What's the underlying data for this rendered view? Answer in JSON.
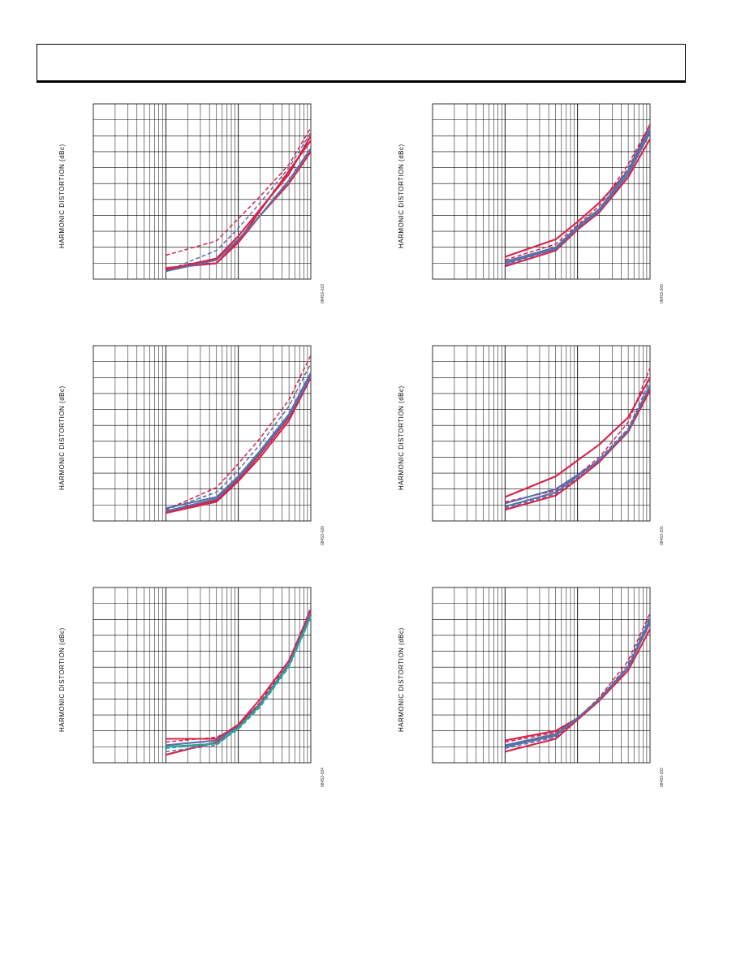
{
  "page": {
    "header_text": ""
  },
  "chart_data": [
    {
      "id": "top-left",
      "type": "line",
      "ylabel": "HARMONIC DISTORTION (dBc)",
      "figure_id": "08453-023",
      "xscale": "log",
      "xlim": [
        0.1,
        100
      ],
      "ylim": [
        -140,
        -30
      ],
      "series": [
        {
          "color": "#d6234a",
          "dashed": false,
          "x": [
            1,
            5,
            10,
            20,
            50,
            100
          ],
          "y": [
            -133,
            -130,
            -117,
            -100,
            -80,
            -60
          ]
        },
        {
          "color": "#d6234a",
          "dashed": false,
          "x": [
            1,
            5,
            10,
            20,
            50,
            100
          ],
          "y": [
            -133,
            -130,
            -116,
            -97,
            -72,
            -53
          ]
        },
        {
          "color": "#5a6fa8",
          "dashed": false,
          "x": [
            1,
            5,
            10,
            20,
            50,
            100
          ],
          "y": [
            -135,
            -128,
            -115,
            -100,
            -78,
            -58
          ]
        },
        {
          "color": "#5a6fa8",
          "dashed": true,
          "x": [
            1,
            5,
            10,
            20,
            50,
            100
          ],
          "y": [
            -135,
            -122,
            -108,
            -92,
            -70,
            -48
          ]
        },
        {
          "color": "#d6234a",
          "dashed": true,
          "x": [
            1,
            5,
            10,
            20,
            50,
            100
          ],
          "y": [
            -125,
            -116,
            -102,
            -88,
            -68,
            -45
          ]
        },
        {
          "color": "#d6234a",
          "dashed": false,
          "x": [
            1,
            5,
            10,
            20,
            50,
            100
          ],
          "y": [
            -134,
            -127,
            -113,
            -96,
            -74,
            -50
          ]
        }
      ]
    },
    {
      "id": "top-right",
      "type": "line",
      "ylabel": "HARMONIC DISTORTION (dBc)",
      "figure_id": "08453-200",
      "xscale": "log",
      "xlim": [
        0.1,
        100
      ],
      "ylim": [
        -140,
        -30
      ],
      "series": [
        {
          "color": "#d6234a",
          "dashed": false,
          "x": [
            1,
            5,
            10,
            20,
            50,
            100
          ],
          "y": [
            -126,
            -115,
            -104,
            -92,
            -72,
            -43
          ]
        },
        {
          "color": "#d6234a",
          "dashed": true,
          "x": [
            1,
            5,
            10,
            20,
            50,
            100
          ],
          "y": [
            -128,
            -118,
            -106,
            -94,
            -68,
            -43
          ]
        },
        {
          "color": "#5a6fa8",
          "dashed": false,
          "x": [
            1,
            5,
            10,
            20,
            50,
            100
          ],
          "y": [
            -129,
            -120,
            -107,
            -96,
            -72,
            -46
          ]
        },
        {
          "color": "#5a6fa8",
          "dashed": true,
          "x": [
            1,
            5,
            10,
            20,
            50,
            100
          ],
          "y": [
            -131,
            -121,
            -108,
            -96,
            -70,
            -44
          ]
        },
        {
          "color": "#d6234a",
          "dashed": false,
          "x": [
            1,
            5,
            10,
            20,
            50,
            100
          ],
          "y": [
            -132,
            -122,
            -109,
            -98,
            -76,
            -52
          ]
        },
        {
          "color": "#5a6fa8",
          "dashed": false,
          "x": [
            1,
            5,
            10,
            20,
            50,
            100
          ],
          "y": [
            -130,
            -121,
            -108,
            -97,
            -74,
            -48
          ]
        }
      ]
    },
    {
      "id": "middle-left",
      "type": "line",
      "ylabel": "HARMONIC DISTORTION (dBc)",
      "figure_id": "08453-020",
      "xscale": "log",
      "xlim": [
        0.1,
        100
      ],
      "ylim": [
        -140,
        -30
      ],
      "series": [
        {
          "color": "#d6234a",
          "dashed": false,
          "x": [
            1,
            5,
            10,
            20,
            50,
            100
          ],
          "y": [
            -135,
            -128,
            -115,
            -100,
            -77,
            -50
          ]
        },
        {
          "color": "#d6234a",
          "dashed": false,
          "x": [
            1,
            5,
            10,
            20,
            50,
            100
          ],
          "y": [
            -134,
            -127,
            -114,
            -98,
            -75,
            -49
          ]
        },
        {
          "color": "#5a6fa8",
          "dashed": false,
          "x": [
            1,
            5,
            10,
            20,
            50,
            100
          ],
          "y": [
            -134,
            -126,
            -113,
            -97,
            -74,
            -49
          ]
        },
        {
          "color": "#5a6fa8",
          "dashed": true,
          "x": [
            1,
            5,
            10,
            20,
            50,
            100
          ],
          "y": [
            -133,
            -122,
            -108,
            -92,
            -68,
            -41
          ]
        },
        {
          "color": "#d6234a",
          "dashed": true,
          "x": [
            1,
            5,
            10,
            20,
            50,
            100
          ],
          "y": [
            -133,
            -119,
            -104,
            -88,
            -64,
            -36
          ]
        },
        {
          "color": "#5a6fa8",
          "dashed": false,
          "x": [
            1,
            5,
            10,
            20,
            50,
            100
          ],
          "y": [
            -132,
            -125,
            -112,
            -96,
            -73,
            -47
          ]
        }
      ]
    },
    {
      "id": "middle-right",
      "type": "line",
      "ylabel": "HARMONIC DISTORTION (dBc)",
      "figure_id": "08453-201",
      "xscale": "log",
      "xlim": [
        0.1,
        100
      ],
      "ylim": [
        -140,
        -30
      ],
      "series": [
        {
          "color": "#d6234a",
          "dashed": false,
          "x": [
            1,
            5,
            10,
            20,
            50,
            100
          ],
          "y": [
            -125,
            -112,
            -102,
            -92,
            -75,
            -50
          ]
        },
        {
          "color": "#d6234a",
          "dashed": true,
          "x": [
            1,
            5,
            10,
            20,
            50,
            100
          ],
          "y": [
            -128,
            -121,
            -111,
            -100,
            -78,
            -44
          ]
        },
        {
          "color": "#5a6fa8",
          "dashed": false,
          "x": [
            1,
            5,
            10,
            20,
            50,
            100
          ],
          "y": [
            -129,
            -120,
            -111,
            -102,
            -84,
            -56
          ]
        },
        {
          "color": "#5a6fa8",
          "dashed": true,
          "x": [
            1,
            5,
            10,
            20,
            50,
            100
          ],
          "y": [
            -132,
            -123,
            -113,
            -101,
            -82,
            -52
          ]
        },
        {
          "color": "#d6234a",
          "dashed": false,
          "x": [
            1,
            5,
            10,
            20,
            50,
            100
          ],
          "y": [
            -133,
            -124,
            -114,
            -103,
            -84,
            -58
          ]
        },
        {
          "color": "#5a6fa8",
          "dashed": false,
          "x": [
            1,
            5,
            10,
            20,
            50,
            100
          ],
          "y": [
            -131,
            -122,
            -112,
            -102,
            -83,
            -55
          ]
        }
      ]
    },
    {
      "id": "bottom-left",
      "type": "line",
      "ylabel": "HARMONIC DISTORTION (dBc)",
      "figure_id": "08453-024",
      "xscale": "log",
      "xlim": [
        0.1,
        100
      ],
      "ylim": [
        -140,
        -30
      ],
      "series": [
        {
          "color": "#d6234a",
          "dashed": false,
          "x": [
            1,
            5,
            10,
            20,
            50,
            100
          ],
          "y": [
            -135,
            -127,
            -116,
            -100,
            -76,
            -44
          ]
        },
        {
          "color": "#d6234a",
          "dashed": false,
          "x": [
            1,
            5,
            10,
            20,
            50,
            100
          ],
          "y": [
            -125,
            -125,
            -116,
            -103,
            -78,
            -47
          ]
        },
        {
          "color": "#5a6fa8",
          "dashed": false,
          "x": [
            1,
            5,
            10,
            20,
            50,
            100
          ],
          "y": [
            -129,
            -126,
            -117,
            -103,
            -78,
            -47
          ]
        },
        {
          "color": "#5a6fa8",
          "dashed": true,
          "x": [
            1,
            5,
            10,
            20,
            50,
            100
          ],
          "y": [
            -133,
            -129,
            -118,
            -103,
            -78,
            -42
          ]
        },
        {
          "color": "#d6234a",
          "dashed": true,
          "x": [
            1,
            5,
            10,
            20,
            50,
            100
          ],
          "y": [
            -127,
            -124,
            -117,
            -102,
            -76,
            -44
          ]
        },
        {
          "color": "#2aa39a",
          "dashed": false,
          "x": [
            1,
            5,
            10,
            20,
            50,
            100
          ],
          "y": [
            -130,
            -128,
            -118,
            -104,
            -79,
            -48
          ]
        },
        {
          "color": "#2aa39a",
          "dashed": true,
          "x": [
            1,
            5,
            10,
            20,
            50,
            100
          ],
          "y": [
            -131,
            -128,
            -119,
            -105,
            -80,
            -49
          ]
        }
      ]
    },
    {
      "id": "bottom-right",
      "type": "line",
      "ylabel": "HARMONIC DISTORTION (dBc)",
      "figure_id": "08453-202",
      "xscale": "log",
      "xlim": [
        0.1,
        100
      ],
      "ylim": [
        -140,
        -30
      ],
      "series": [
        {
          "color": "#d6234a",
          "dashed": false,
          "x": [
            1,
            5,
            10,
            20,
            50,
            100
          ],
          "y": [
            -126,
            -120,
            -112,
            -100,
            -80,
            -52
          ]
        },
        {
          "color": "#d6234a",
          "dashed": true,
          "x": [
            1,
            5,
            10,
            20,
            50,
            100
          ],
          "y": [
            -127,
            -121,
            -112,
            -99,
            -76,
            -46
          ]
        },
        {
          "color": "#5a6fa8",
          "dashed": false,
          "x": [
            1,
            5,
            10,
            20,
            50,
            100
          ],
          "y": [
            -129,
            -122,
            -112,
            -100,
            -80,
            -52
          ]
        },
        {
          "color": "#5a6fa8",
          "dashed": true,
          "x": [
            1,
            5,
            10,
            20,
            50,
            100
          ],
          "y": [
            -131,
            -124,
            -113,
            -100,
            -78,
            -48
          ]
        },
        {
          "color": "#d6234a",
          "dashed": false,
          "x": [
            1,
            5,
            10,
            20,
            50,
            100
          ],
          "y": [
            -133,
            -125,
            -113,
            -101,
            -82,
            -56
          ]
        },
        {
          "color": "#5a6fa8",
          "dashed": false,
          "x": [
            1,
            5,
            10,
            20,
            50,
            100
          ],
          "y": [
            -130,
            -123,
            -112,
            -100,
            -80,
            -50
          ]
        }
      ]
    }
  ]
}
